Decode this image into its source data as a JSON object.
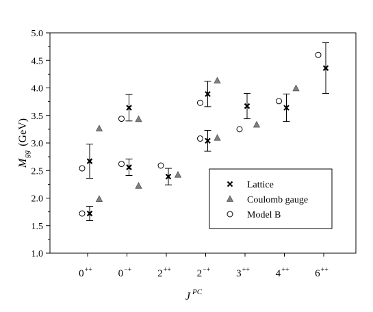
{
  "chart_data": {
    "type": "scatter",
    "title": "",
    "xlabel": {
      "base": "J",
      "sup": "PC"
    },
    "ylabel": {
      "base": "M",
      "sub": "gg",
      "unit": "(GeV)"
    },
    "ylim": [
      1.0,
      5.0
    ],
    "yticks": [
      "1.0",
      "1.5",
      "2.0",
      "2.5",
      "3.0",
      "3.5",
      "4.0",
      "4.5",
      "5.0"
    ],
    "categories": [
      {
        "base": "0",
        "sup": "++"
      },
      {
        "base": "0",
        "sup": "−+"
      },
      {
        "base": "2",
        "sup": "++"
      },
      {
        "base": "2",
        "sup": "−+"
      },
      {
        "base": "3",
        "sup": "++"
      },
      {
        "base": "4",
        "sup": "++"
      },
      {
        "base": "6",
        "sup": "++"
      }
    ],
    "grid": false,
    "legend_position": "bottom-right",
    "series": [
      {
        "name": "Lattice",
        "marker": "cross",
        "points": [
          {
            "cat": 0,
            "y": 1.72,
            "err": 0.13
          },
          {
            "cat": 0,
            "y": 2.67,
            "err": 0.31
          },
          {
            "cat": 1,
            "y": 2.56,
            "err": 0.15
          },
          {
            "cat": 1,
            "y": 3.64,
            "err": 0.24
          },
          {
            "cat": 2,
            "y": 2.39,
            "err": 0.15
          },
          {
            "cat": 3,
            "y": 3.04,
            "err": 0.19
          },
          {
            "cat": 3,
            "y": 3.89,
            "err": 0.23
          },
          {
            "cat": 4,
            "y": 3.67,
            "err": 0.23
          },
          {
            "cat": 5,
            "y": 3.64,
            "err": 0.25
          },
          {
            "cat": 6,
            "y": 4.36,
            "err": 0.46
          }
        ]
      },
      {
        "name": "Coulomb gauge",
        "marker": "triangle",
        "color": "#808080",
        "points": [
          {
            "cat": 0,
            "y": 1.98
          },
          {
            "cat": 0,
            "y": 3.26
          },
          {
            "cat": 1,
            "y": 2.22
          },
          {
            "cat": 1,
            "y": 3.43
          },
          {
            "cat": 2,
            "y": 2.42
          },
          {
            "cat": 3,
            "y": 3.09
          },
          {
            "cat": 3,
            "y": 4.13
          },
          {
            "cat": 4,
            "y": 3.33
          },
          {
            "cat": 5,
            "y": 3.99
          }
        ]
      },
      {
        "name": "Model B",
        "marker": "circle",
        "points": [
          {
            "cat": 0,
            "y": 1.72
          },
          {
            "cat": 0,
            "y": 2.54
          },
          {
            "cat": 1,
            "y": 2.62
          },
          {
            "cat": 1,
            "y": 3.44
          },
          {
            "cat": 2,
            "y": 2.59
          },
          {
            "cat": 3,
            "y": 3.08
          },
          {
            "cat": 3,
            "y": 3.73
          },
          {
            "cat": 4,
            "y": 3.25
          },
          {
            "cat": 5,
            "y": 3.76
          },
          {
            "cat": 6,
            "y": 4.6
          }
        ]
      }
    ]
  }
}
